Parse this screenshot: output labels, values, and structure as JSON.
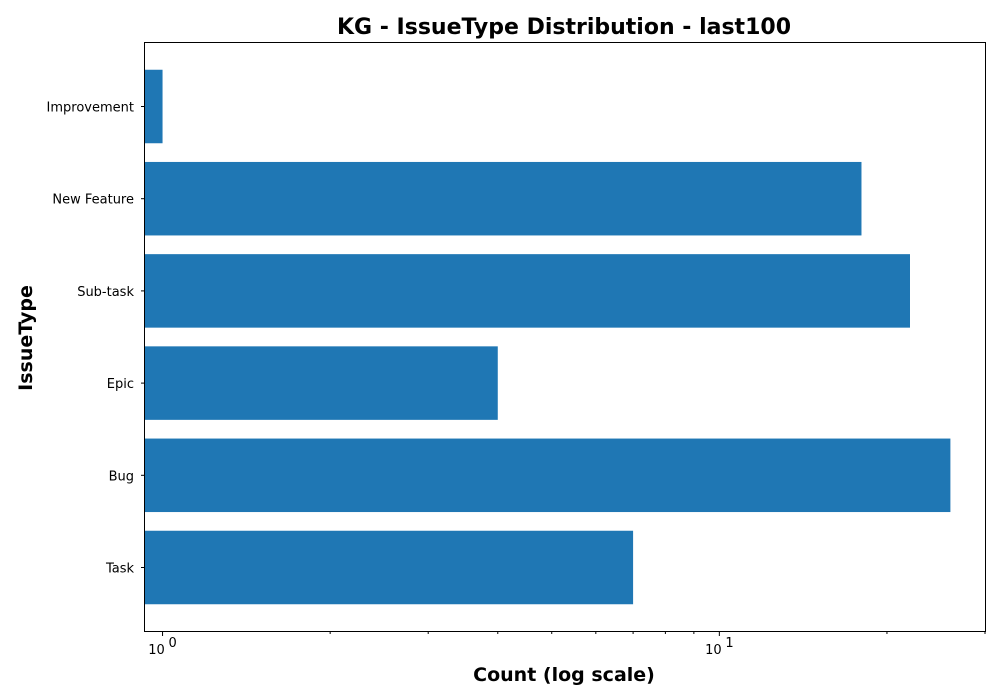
{
  "chart_data": {
    "type": "bar",
    "orientation": "horizontal",
    "title": "KG - IssueType Distribution - last100",
    "xlabel": "Count (log scale)",
    "ylabel": "IssueType",
    "x_scale": "log",
    "xlim": [
      0.93,
      30
    ],
    "categories": [
      "Task",
      "Bug",
      "Epic",
      "Sub-task",
      "New Feature",
      "Improvement"
    ],
    "values": [
      7,
      26,
      4,
      22,
      18,
      1
    ],
    "x_ticks": [
      {
        "value": 1,
        "base": "10",
        "exp": "0"
      },
      {
        "value": 10,
        "base": "10",
        "exp": "1"
      }
    ],
    "bar_color": "#1f77b4",
    "grid": false,
    "legend": "none"
  }
}
